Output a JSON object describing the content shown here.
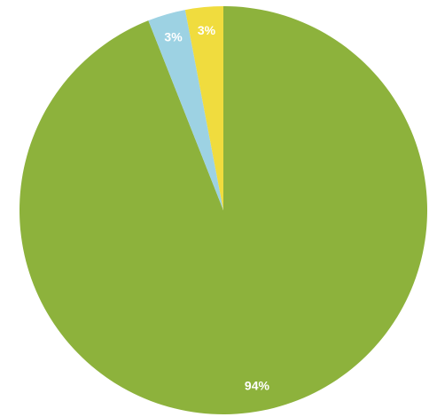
{
  "chart_data": {
    "type": "pie",
    "values": [
      94,
      3,
      3
    ],
    "value_labels": [
      "94%",
      "3%",
      "3%"
    ],
    "colors": [
      "#8db23c",
      "#9dd2e3",
      "#f0dc3e"
    ],
    "start": "top",
    "direction": "clockwise"
  }
}
